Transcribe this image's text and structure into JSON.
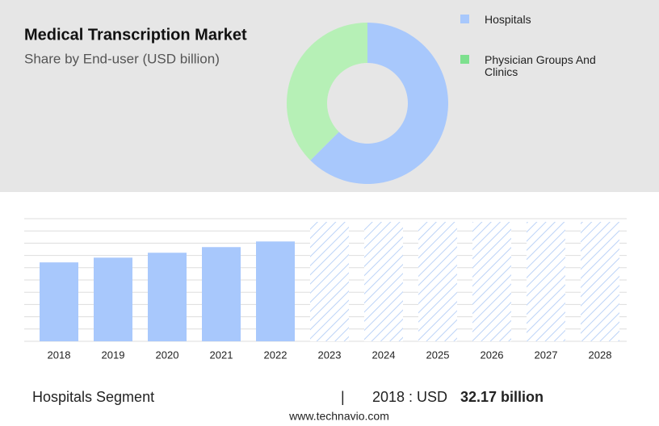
{
  "chart_data": [
    {
      "type": "donut",
      "title": "Medical Transcription Market",
      "subtitle": "Share by End-user (USD billion)",
      "categories": [
        "Hospitals",
        "Physician Groups And Clinics"
      ],
      "values": [
        62.5,
        37.5
      ],
      "colors": [
        "#a8c8fc",
        "#b6f0b6"
      ],
      "legend_colors": [
        "#a8c8fc",
        "#7de08e"
      ]
    },
    {
      "type": "bar",
      "categories": [
        "2018",
        "2019",
        "2020",
        "2021",
        "2022",
        "2023",
        "2024",
        "2025",
        "2026",
        "2027",
        "2028"
      ],
      "values": [
        32.17,
        34.1,
        36.1,
        38.4,
        40.7,
        null,
        null,
        null,
        null,
        null,
        null
      ],
      "color": "#a8c8fc",
      "ylim": [
        0,
        50
      ],
      "yticks": [
        0,
        5,
        10,
        15,
        20,
        25,
        30,
        35,
        40,
        45,
        50
      ],
      "grid": true
    }
  ],
  "footer": {
    "segment": "Hospitals Segment",
    "separator": "|",
    "year_label": "2018 : USD",
    "value": "32.17 billion",
    "website": "www.technavio.com"
  }
}
